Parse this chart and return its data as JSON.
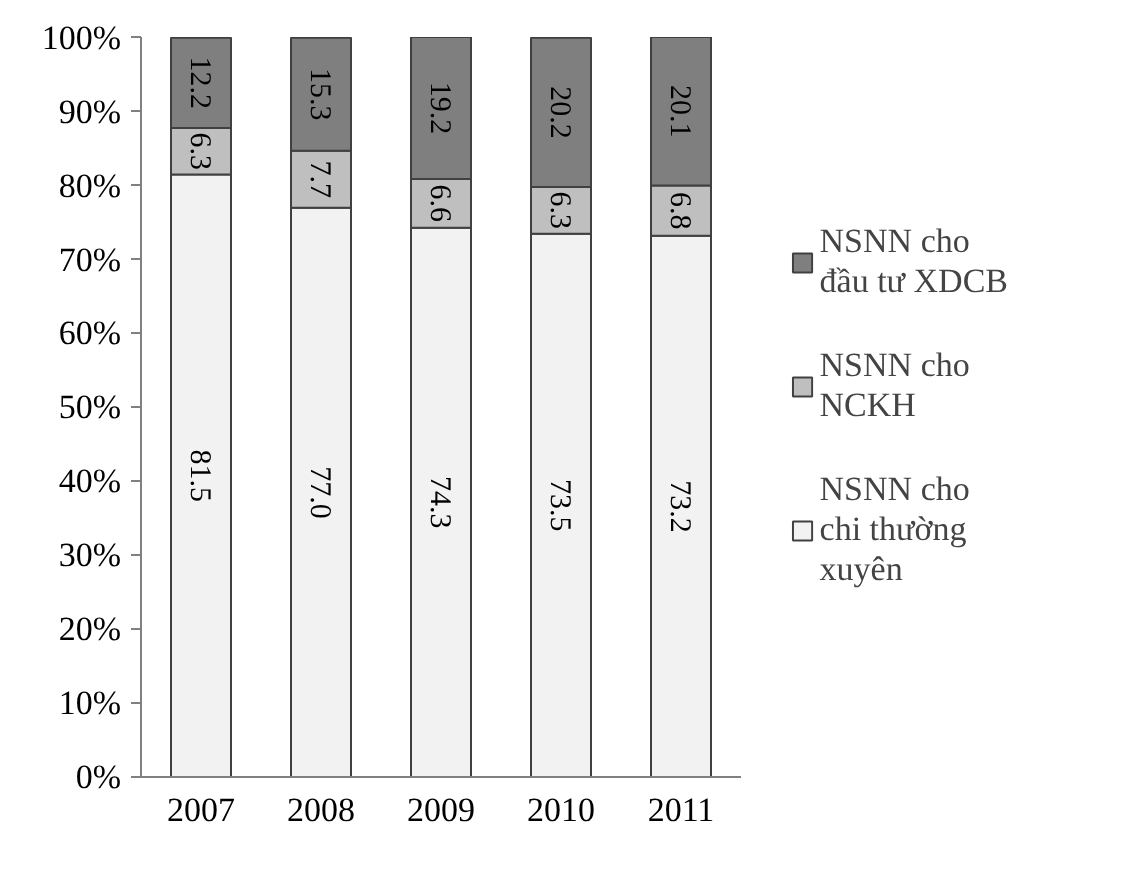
{
  "chart_data": {
    "type": "bar",
    "stacked": true,
    "categories": [
      "2007",
      "2008",
      "2009",
      "2010",
      "2011"
    ],
    "series": [
      {
        "name": "NSNN cho chi thường xuyên",
        "color": "#f2f2f2",
        "values": [
          81.5,
          77.0,
          74.3,
          73.5,
          73.2
        ],
        "value_labels": [
          "81.5",
          "77.0",
          "74.3",
          "73.5",
          "73.2"
        ]
      },
      {
        "name": "NSNN cho NCKH",
        "color": "#bfbfbf",
        "values": [
          6.3,
          7.7,
          6.6,
          6.3,
          6.8
        ],
        "value_labels": [
          "6.3",
          "7.7",
          "6.6",
          "6.3",
          "6.8"
        ]
      },
      {
        "name": "NSNN cho đầu tư XDCB",
        "color": "#7f7f7f",
        "values": [
          12.2,
          15.3,
          19.2,
          20.2,
          20.1
        ],
        "value_labels": [
          "12.2",
          "15.3",
          "19.2",
          "20.2",
          "20.1"
        ]
      }
    ],
    "ylim": [
      0,
      100.1
    ],
    "yticks": [
      {
        "value": 0,
        "label": "0%"
      },
      {
        "value": 10,
        "label": "10%"
      },
      {
        "value": 20,
        "label": "20%"
      },
      {
        "value": 30,
        "label": "30%"
      },
      {
        "value": 40,
        "label": "40%"
      },
      {
        "value": 50,
        "label": "50%"
      },
      {
        "value": 60,
        "label": "60%"
      },
      {
        "value": 70,
        "label": "70%"
      },
      {
        "value": 80,
        "label": "80%"
      },
      {
        "value": 90,
        "label": "90%"
      },
      {
        "value": 100,
        "label": "100%"
      }
    ],
    "grid": false,
    "legend": "right"
  }
}
